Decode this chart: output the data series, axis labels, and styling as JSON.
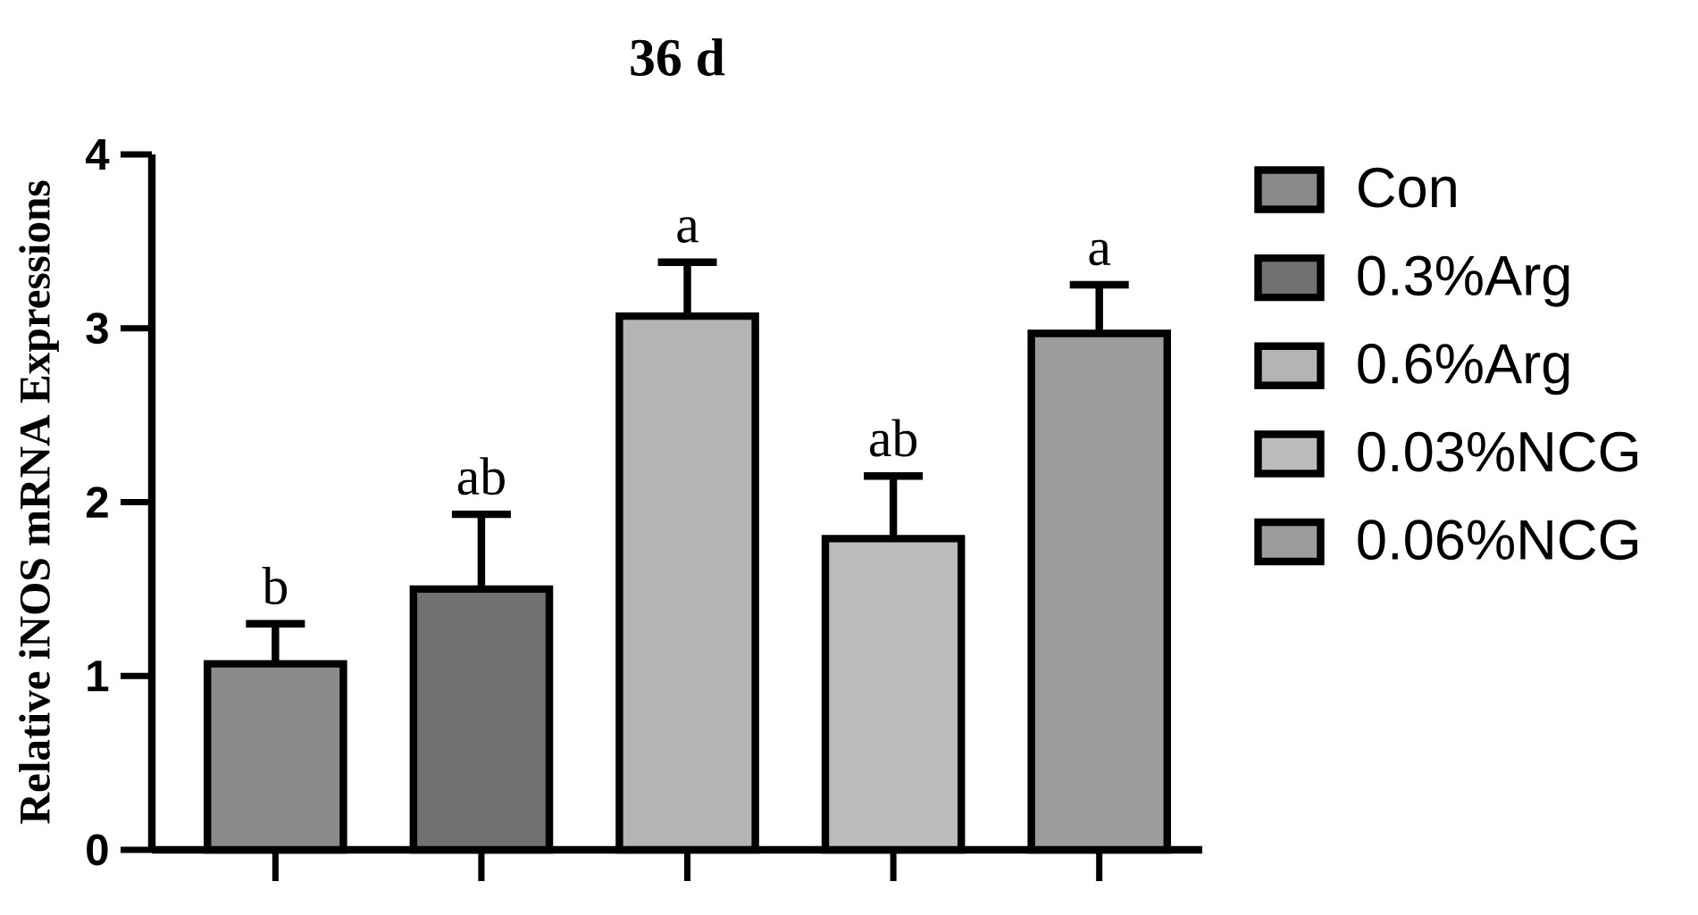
{
  "chart_data": {
    "type": "bar",
    "title": "36 d",
    "ylabel": "Relative iNOS mRNA Expressions",
    "categories": [
      null,
      null,
      null,
      null,
      null
    ],
    "series": [
      {
        "name": "Con",
        "color": "#8a8a8a",
        "values": [
          1.07,
          null,
          null,
          null,
          null
        ],
        "errors": [
          0.23,
          null,
          null,
          null,
          null
        ],
        "value_labels": [
          "b",
          null,
          null,
          null,
          null
        ]
      },
      {
        "name": "0.3%Arg",
        "color": "#707070",
        "values": [
          null,
          1.5,
          null,
          null,
          null
        ],
        "errors": [
          null,
          0.43,
          null,
          null,
          null
        ],
        "value_labels": [
          null,
          "ab",
          null,
          null,
          null
        ]
      },
      {
        "name": "0.6%Arg",
        "color": "#b4b4b4",
        "values": [
          null,
          null,
          3.07,
          null,
          null
        ],
        "errors": [
          null,
          null,
          0.31,
          null,
          null
        ],
        "value_labels": [
          null,
          null,
          "a",
          null,
          null
        ]
      },
      {
        "name": "0.03%NCG",
        "color": "#bcbcbc",
        "values": [
          null,
          null,
          null,
          1.79,
          null
        ],
        "errors": [
          null,
          null,
          null,
          0.36,
          null
        ],
        "value_labels": [
          null,
          null,
          null,
          "ab",
          null
        ]
      },
      {
        "name": "0.06%NCG",
        "color": "#9c9c9c",
        "values": [
          null,
          null,
          null,
          null,
          2.97
        ],
        "errors": [
          null,
          null,
          null,
          null,
          0.28
        ],
        "value_labels": [
          null,
          null,
          null,
          null,
          "a"
        ]
      }
    ],
    "ylim": [
      0,
      4
    ],
    "yticks": [
      0,
      1,
      2,
      3,
      4
    ],
    "legend": "right"
  }
}
